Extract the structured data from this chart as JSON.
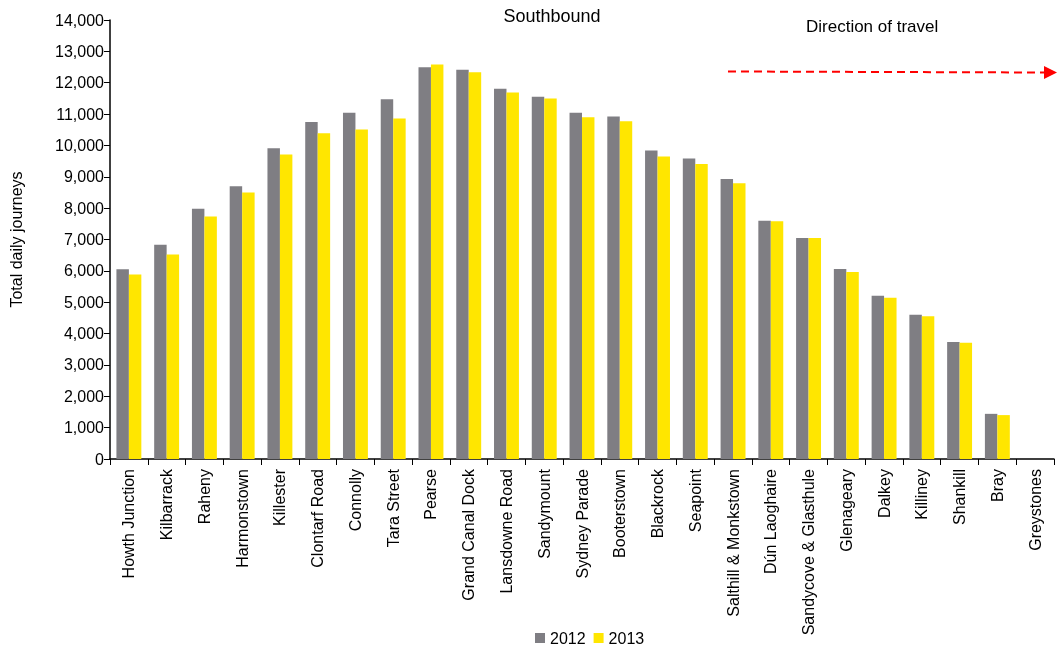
{
  "chart_data": {
    "type": "bar",
    "title": "Southbound",
    "ylabel": "Total daily journeys",
    "categories": [
      "Howth Junction",
      "Kilbarrack",
      "Raheny",
      "Harmonstown",
      "Killester",
      "Clontarf Road",
      "Connolly",
      "Tara Street",
      "Pearse",
      "Grand Canal Dock",
      "Lansdowne Road",
      "Sandymount",
      "Sydney Parade",
      "Booterstown",
      "Blackrock",
      "Seapoint",
      "Salthill & Monkstown",
      "Dún Laoghaire",
      "Sandycove & Glasthule",
      "Glenageary",
      "Dalkey",
      "Killiney",
      "Shankill",
      "Bray",
      "Greystones"
    ],
    "series": [
      {
        "name": "2012",
        "color": "#7f7e83",
        "values": [
          6050,
          6830,
          7980,
          8700,
          9910,
          10750,
          11040,
          11470,
          12490,
          12410,
          11810,
          11550,
          11040,
          10920,
          9840,
          9580,
          8930,
          7600,
          7050,
          6060,
          5210,
          4600,
          3730,
          1440,
          null
        ]
      },
      {
        "name": "2013",
        "color": "#ffe600",
        "values": [
          5880,
          6520,
          7730,
          8500,
          9710,
          10390,
          10510,
          10860,
          12580,
          12330,
          11690,
          11500,
          10900,
          10770,
          9650,
          9410,
          8790,
          7580,
          7050,
          5960,
          5140,
          4550,
          3710,
          1400,
          null
        ]
      }
    ],
    "ylim": [
      0,
      14000
    ],
    "yticks": [
      0,
      {
        "value": 1000,
        "label": "1,000"
      },
      {
        "value": 2000,
        "label": "2,000"
      },
      {
        "value": 3000,
        "label": "3,000"
      },
      {
        "value": 4000,
        "label": "4,000"
      },
      {
        "value": 5000,
        "label": "5,000"
      },
      {
        "value": 6000,
        "label": "6,000"
      },
      {
        "value": 7000,
        "label": "7,000"
      },
      {
        "value": 8000,
        "label": "8,000"
      },
      {
        "value": 9000,
        "label": "9,000"
      },
      {
        "value": 10000,
        "label": "10,000"
      },
      {
        "value": 11000,
        "label": "11,000"
      },
      {
        "value": 12000,
        "label": "12,000"
      },
      {
        "value": 13000,
        "label": "13,000"
      },
      {
        "value": 14000,
        "label": "14,000"
      }
    ],
    "grid": false,
    "legend": "bottom",
    "annotations": [
      "Direction of travel"
    ]
  }
}
